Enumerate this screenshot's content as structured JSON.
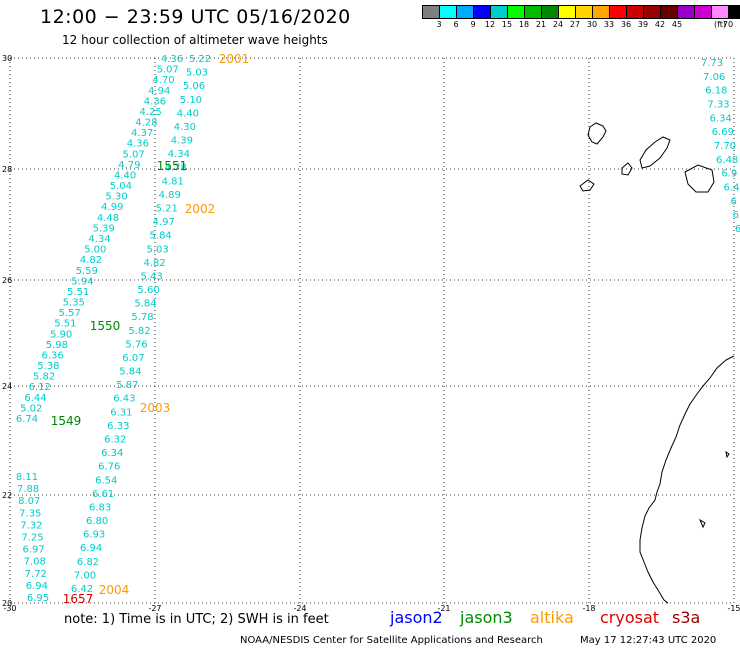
{
  "header": {
    "title": "12:00 − 23:59 UTC 05/16/2020",
    "subtitle": "12 hour collection of altimeter wave heights"
  },
  "colorbar": {
    "colors": [
      "#7f7f7f",
      "#00ffff",
      "#00aaff",
      "#0000ff",
      "#00cccc",
      "#00ff00",
      "#00bb00",
      "#008800",
      "#ffff00",
      "#ffd200",
      "#ffa500",
      "#ff0000",
      "#cc0000",
      "#990000",
      "#660000",
      "#9900cc",
      "#cc00cc",
      "#ff88ff",
      "#000000"
    ],
    "labels": [
      "3",
      "6",
      "9",
      "12",
      "15",
      "18",
      "21",
      "24",
      "27",
      "30",
      "33",
      "36",
      "39",
      "42",
      "45",
      "70"
    ],
    "unit": "(ft)"
  },
  "axes": {
    "x_labels": [
      "-30",
      "-27",
      "-24",
      "-21",
      "-18",
      "-15"
    ],
    "y_labels": [
      "30",
      "28",
      "26",
      "24",
      "22",
      "20"
    ]
  },
  "tracks": {
    "wave_color": "#00cccc",
    "track_a": [
      "4.36",
      "5.07",
      "4.70",
      "4.94",
      "4.36",
      "4.25",
      "4.28",
      "4.37",
      "4.36",
      "5.07",
      "4.79",
      "4.40",
      "5.04",
      "5.30",
      "4.99",
      "4.48",
      "5.39",
      "4.34",
      "5.00",
      "4.82",
      "5.59",
      "5.94",
      "5.51",
      "5.35",
      "5.57",
      "5.51",
      "5.90",
      "5.98",
      "6.36",
      "5.38",
      "5.82",
      "6.12",
      "6.44",
      "5.02",
      "6.74"
    ],
    "track_b": [
      "5.22",
      "5.03",
      "5.06",
      "5.10",
      "4.40",
      "4.30",
      "4.39",
      "4.34",
      "4.78",
      "4.81",
      "4.89",
      "5.21",
      "4.97",
      "5.84",
      "5.03",
      "4.82",
      "5.43",
      "5.60",
      "5.84",
      "5.78",
      "5.82",
      "5.76",
      "6.07",
      "5.84",
      "5.87",
      "6.43",
      "6.31",
      "6.33",
      "6.32",
      "6.34",
      "6.76",
      "6.54",
      "6.61",
      "6.83",
      "6.80",
      "6.93",
      "6.94",
      "6.82",
      "7.00",
      "6.42"
    ],
    "track_c": [
      "8.11",
      "7.88",
      "8.07",
      "7.35",
      "7.32",
      "7.25",
      "6.97",
      "7.08",
      "7.72",
      "6.94",
      "6.95"
    ],
    "track_d": [
      "7.73",
      "7.06",
      "6.18",
      "7.33",
      "6.34",
      "6.69",
      "7.70",
      "6.48",
      "6.9",
      "6.4",
      "6",
      "6",
      "6"
    ]
  },
  "time_labels": [
    {
      "text": "2001",
      "color": "#ff9900"
    },
    {
      "text": "1551",
      "color": "#008800"
    },
    {
      "text": "2002",
      "color": "#ff9900"
    },
    {
      "text": "1550",
      "color": "#008800"
    },
    {
      "text": "2003",
      "color": "#ff9900"
    },
    {
      "text": "1549",
      "color": "#008800"
    },
    {
      "text": "2004",
      "color": "#ff9900"
    },
    {
      "text": "1657",
      "color": "#dd0000"
    }
  ],
  "footer": {
    "note": "note:  1) Time is in UTC;  2) SWH is in feet",
    "satellites": [
      {
        "name": "jason2",
        "color": "#0000ff"
      },
      {
        "name": "jason3",
        "color": "#008800"
      },
      {
        "name": "altika",
        "color": "#ff9900"
      },
      {
        "name": "cryosat",
        "color": "#dd0000"
      },
      {
        "name": "s3a",
        "color": "#990000"
      }
    ],
    "credit": "NOAA/NESDIS Center for Satellite Applications and Research",
    "timestamp": "May 17 12:27:43 UTC 2020"
  }
}
